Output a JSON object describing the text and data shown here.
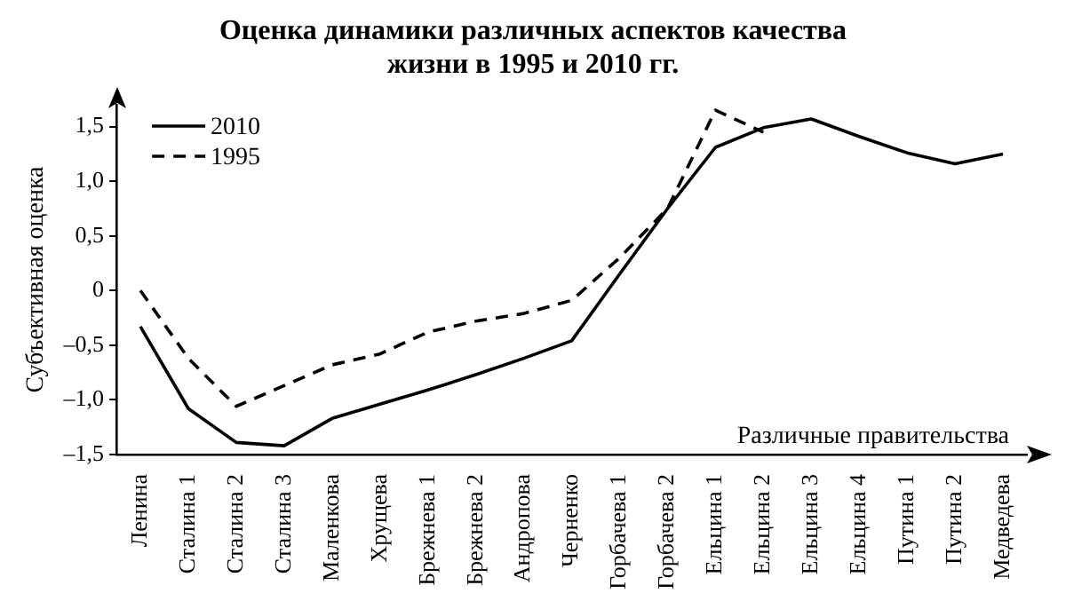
{
  "chart_data": {
    "type": "line",
    "title": "Оценка динамики различных аспектов качества жизни в 1995 и 2010 гг.",
    "xlabel": "Различные правительства",
    "ylabel": "Субъективная оценка",
    "categories": [
      "Ленина",
      "Сталина 1",
      "Сталина 2",
      "Сталина 3",
      "Маленкова",
      "Хрущева",
      "Брежнева 1",
      "Брежнева 2",
      "Андропова",
      "Черненко",
      "Горбачева 1",
      "Горбачева 2",
      "Ельцина 1",
      "Ельцина 2",
      "Ельцина 3",
      "Ельцина 4",
      "Путина 1",
      "Путина 2",
      "Медведева"
    ],
    "series": [
      {
        "name": "2010",
        "color": "#000000",
        "line_style": "solid",
        "values": [
          -0.33,
          -1.08,
          -1.39,
          -1.42,
          -1.17,
          -1.04,
          -0.91,
          -0.77,
          -0.62,
          -0.46,
          0.15,
          0.75,
          1.31,
          1.49,
          1.57,
          1.41,
          1.26,
          1.16,
          1.25
        ]
      },
      {
        "name": "1995",
        "color": "#000000",
        "line_style": "dashed",
        "values": [
          0,
          -0.62,
          -1.06,
          -0.87,
          -0.68,
          -0.58,
          -0.38,
          -0.28,
          -0.21,
          -0.09,
          0.3,
          0.75,
          1.65,
          1.45,
          null,
          null,
          null,
          null,
          null
        ]
      }
    ],
    "ylim": [
      -1.5,
      1.7
    ],
    "yticks": [
      {
        "value": -1.5,
        "label": "–1,5"
      },
      {
        "value": -1,
        "label": "–1,0"
      },
      {
        "value": -0.5,
        "label": "–0,5"
      },
      0,
      {
        "value": 0.5,
        "label": "0,5"
      },
      {
        "value": 1,
        "label": "1,0"
      },
      {
        "value": 1.5,
        "label": "1,5"
      }
    ],
    "legend": "top left",
    "marker": "none"
  }
}
